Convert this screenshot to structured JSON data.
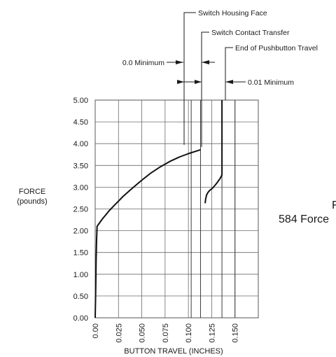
{
  "chart_data": {
    "type": "line",
    "title": "",
    "xlabel": "BUTTON TRAVEL (INCHES)",
    "ylabel": "FORCE\n(pounds)",
    "ylabel_lines": [
      "FORCE",
      "(pounds)"
    ],
    "x_ticks": [
      "0.00",
      "0.025",
      "0.050",
      "0.075",
      "0.100",
      "0.125",
      "0.150"
    ],
    "y_ticks": [
      "0.00",
      "0.50",
      "1.00",
      "1.50",
      "2.00",
      "2.50",
      "3.00",
      "3.50",
      "4.00",
      "4.50",
      "5.00"
    ],
    "xlim": [
      0,
      0.175
    ],
    "ylim": [
      0,
      5.0
    ],
    "grid": true,
    "series": [
      {
        "x": [
          0.0,
          0.0005,
          0.001,
          0.0015,
          0.002,
          0.003,
          0.004,
          0.006,
          0.008,
          0.01,
          0.015,
          0.02,
          0.025,
          0.03,
          0.04,
          0.05,
          0.06,
          0.07,
          0.08,
          0.09,
          0.1,
          0.11,
          0.113
        ],
        "y": [
          0.0,
          0.6,
          1.3,
          1.8,
          2.1,
          2.13,
          2.16,
          2.22,
          2.28,
          2.33,
          2.46,
          2.57,
          2.68,
          2.79,
          2.98,
          3.16,
          3.33,
          3.47,
          3.59,
          3.69,
          3.77,
          3.84,
          3.86
        ]
      },
      {
        "x": [
          0.118,
          0.1185,
          0.1195,
          0.121,
          0.123,
          0.126,
          0.13,
          0.134,
          0.136,
          0.136,
          0.136
        ],
        "y": [
          2.63,
          2.73,
          2.82,
          2.88,
          2.93,
          2.98,
          3.08,
          3.2,
          3.28,
          4.0,
          5.0
        ]
      }
    ],
    "annotations": [
      "Switch Housing Face",
      "Switch Contact Transfer",
      "End of Pushbutton Travel",
      "0.0 Minimum",
      "0.01 Minimum"
    ],
    "reference_lines_x": [
      0.103,
      0.113,
      0.136,
      0.15
    ]
  },
  "clipped_text": {
    "line1": "F",
    "line2": "584 Force"
  }
}
